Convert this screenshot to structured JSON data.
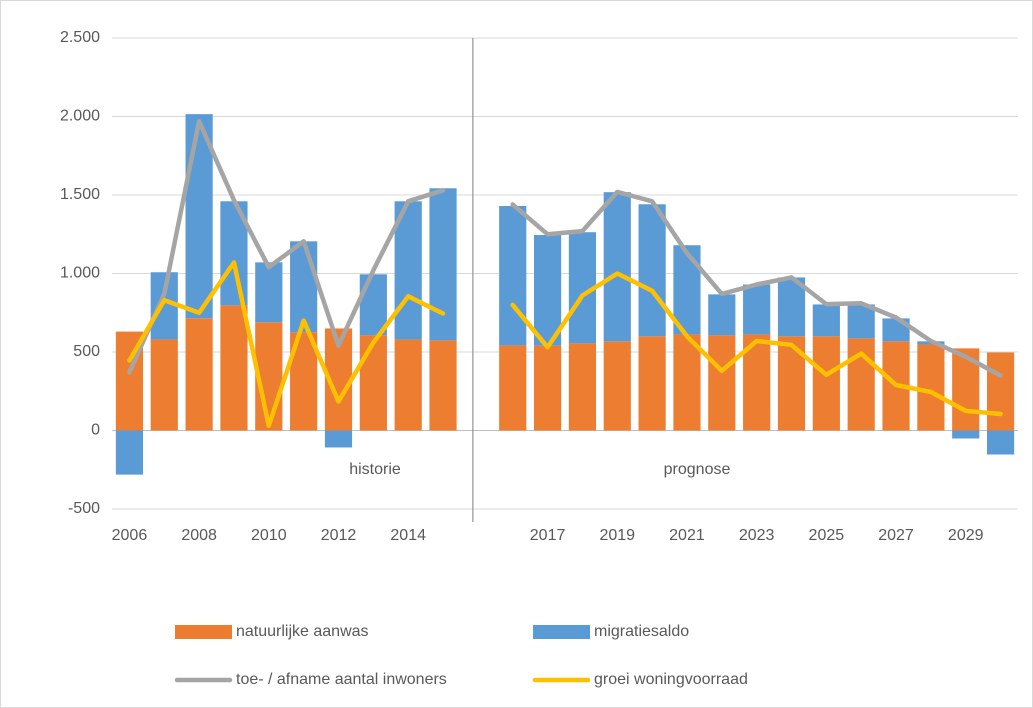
{
  "chart_data": {
    "type": "bar",
    "stacked": true,
    "grid": true,
    "categories": [
      "2006",
      null,
      "2008",
      null,
      "2010",
      null,
      "2012",
      null,
      "2014",
      null,
      null,
      null,
      "2017",
      null,
      "2019",
      null,
      "2021",
      null,
      "2023",
      null,
      "2025",
      null,
      "2027",
      null,
      "2029",
      null
    ],
    "ylim": [
      -500,
      2500
    ],
    "yticks": [
      -500,
      0,
      500,
      {
        "value": 1000,
        "label": "1.000"
      },
      {
        "value": 1500,
        "label": "1.500"
      },
      {
        "value": 2000,
        "label": "2.000"
      },
      {
        "value": 2500,
        "label": "2.500"
      }
    ],
    "annotations": [
      "historie",
      "prognose"
    ],
    "series": [
      {
        "name": "natuurlijke aanwas",
        "type": "bar",
        "color": "#ed7d31",
        "values": [
          630,
          580,
          715,
          797,
          689,
          625,
          650,
          606,
          580,
          574,
          null,
          542,
          540,
          555,
          568,
          600,
          612,
          606,
          612,
          600,
          600,
          587,
          568,
          548,
          523,
          497
        ]
      },
      {
        "name": "migratiesaldo",
        "type": "bar",
        "color": "#5b9bd5",
        "values": [
          -281,
          428,
          1300,
          663,
          382,
          580,
          -108,
          389,
          880,
          969,
          null,
          888,
          705,
          708,
          950,
          841,
          568,
          261,
          318,
          375,
          203,
          216,
          146,
          20,
          -51,
          -153
        ]
      },
      {
        "name": "toe- / afname aantal inwoners",
        "type": "line",
        "color": "#a5a5a5",
        "values": [
          370,
          870,
          1970,
          1467,
          1040,
          1205,
          540,
          1020,
          1460,
          1530,
          null,
          1440,
          1250,
          1270,
          1520,
          1460,
          1130,
          870,
          930,
          975,
          805,
          810,
          720,
          570,
          470,
          350
        ]
      },
      {
        "name": "groei woningvoorraad",
        "type": "line",
        "color": "#ffc000",
        "values": [
          446,
          830,
          750,
          1070,
          30,
          700,
          185,
          560,
          855,
          745,
          null,
          800,
          530,
          860,
          1000,
          890,
          600,
          380,
          570,
          545,
          355,
          490,
          290,
          245,
          125,
          105
        ]
      }
    ]
  }
}
